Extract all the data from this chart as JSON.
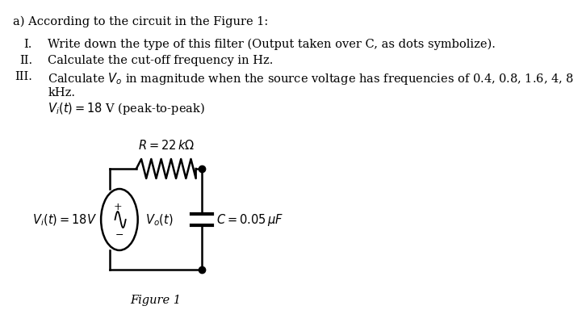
{
  "title": "a) According to the circuit in the Figure 1:",
  "item_I_num": "I.",
  "item_I_text": "Write down the type of this filter (Output taken over C, as dots symbolize).",
  "item_II_num": "II.",
  "item_II_text": "Calculate the cut-off frequency in Hz.",
  "item_III_num": "III.",
  "item_III_text": "Calculate $V_o$ in magnitude when the source voltage has frequencies of 0.4, 0.8, 1.6, 4, 8",
  "item_cont_text": "kHz.",
  "item_vi_text": "$V_i(t) = 18$ V (peak-to-peak)",
  "R_label": "$R = 22\\,k\\Omega$",
  "C_label": "$C = 0.05\\,\\mu F$",
  "Vi_label": "$V_i(t) = 18V$",
  "Vo_label": "$V_o(t)$",
  "figure_label": "Figure 1",
  "bg_color": "#ffffff",
  "text_color": "#000000",
  "line_color": "#000000",
  "font_size_title": 10.5,
  "font_size_body": 10.5,
  "font_size_circuit": 10.5
}
